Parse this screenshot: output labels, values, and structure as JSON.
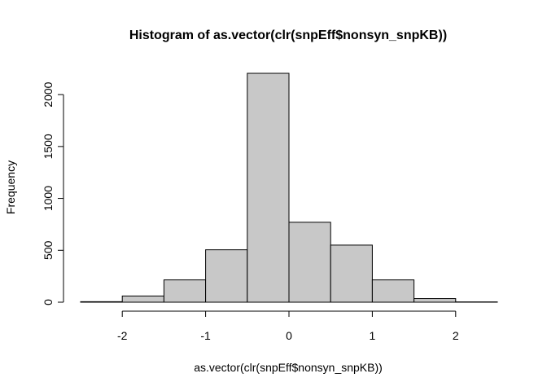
{
  "chart_data": {
    "type": "bar",
    "title": "Histogram of as.vector(clr(snpEff$nonsyn_snpKB))",
    "xlabel": "as.vector(clr(snpEff$nonsyn_snpKB))",
    "ylabel": "Frequency",
    "bin_edges": [
      -2.5,
      -2.0,
      -1.5,
      -1.0,
      -0.5,
      0.0,
      0.5,
      1.0,
      1.5,
      2.0,
      2.5
    ],
    "values": [
      5,
      60,
      215,
      505,
      2205,
      770,
      550,
      215,
      35,
      3
    ],
    "xlim": [
      -2.5,
      2.5
    ],
    "ylim": [
      0,
      2205
    ],
    "xticks": [
      -2,
      -1,
      0,
      1,
      2
    ],
    "xtick_labels": [
      "-2",
      "-1",
      "0",
      "1",
      "2"
    ],
    "yticks": [
      0,
      500,
      1000,
      1500,
      2000
    ],
    "ytick_labels": [
      "0",
      "500",
      "1000",
      "1500",
      "2000"
    ],
    "bar_fill": "#c8c8c8",
    "bar_stroke": "#000000",
    "grid": false,
    "legend": "none"
  }
}
